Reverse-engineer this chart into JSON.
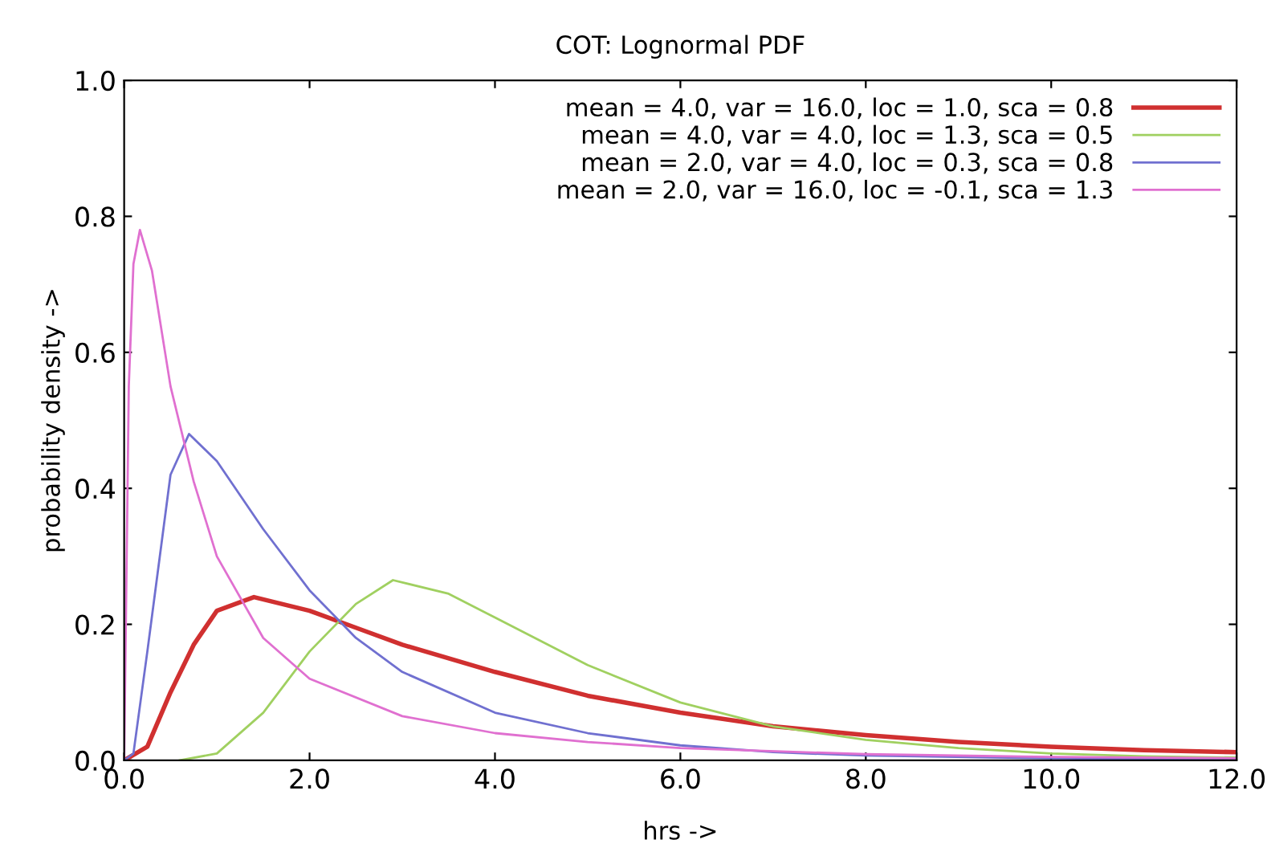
{
  "chart_data": {
    "type": "line",
    "title": "COT: Lognormal PDF",
    "xlabel": "hrs ->",
    "ylabel": "probability density ->",
    "xlim": [
      0,
      12
    ],
    "ylim": [
      0,
      1
    ],
    "xticks": [
      {
        "value": 0,
        "label": "0.0"
      },
      {
        "value": 2,
        "label": "2.0"
      },
      {
        "value": 4,
        "label": "4.0"
      },
      {
        "value": 6,
        "label": "6.0"
      },
      {
        "value": 8,
        "label": "8.0"
      },
      {
        "value": 10,
        "label": "10.0"
      },
      {
        "value": 12,
        "label": "12.0"
      }
    ],
    "yticks": [
      {
        "value": 0,
        "label": "0.0"
      },
      {
        "value": 0.2,
        "label": "0.2"
      },
      {
        "value": 0.4,
        "label": "0.4"
      },
      {
        "value": 0.6,
        "label": "0.6"
      },
      {
        "value": 0.8,
        "label": "0.8"
      },
      {
        "value": 1,
        "label": "1.0"
      }
    ],
    "grid": false,
    "legend": "top right",
    "marker": "none",
    "line_style": "solid",
    "series": [
      {
        "name": "mean = 4.0, var = 16.0, loc = 1.0, sca = 0.8",
        "color": "#d03030",
        "x": [
          0,
          0.25,
          0.5,
          0.75,
          1.0,
          1.4,
          2.0,
          2.5,
          3,
          4,
          5,
          6,
          7,
          8,
          9,
          10,
          11,
          12
        ],
        "values": [
          0,
          0.02,
          0.1,
          0.17,
          0.22,
          0.24,
          0.22,
          0.195,
          0.17,
          0.13,
          0.095,
          0.07,
          0.05,
          0.037,
          0.027,
          0.02,
          0.015,
          0.012
        ]
      },
      {
        "name": "mean = 4.0, var = 4.0, loc = 1.3, sca = 0.5",
        "color": "#a0d060",
        "x": [
          0.6,
          1,
          1.5,
          2,
          2.5,
          2.9,
          3.5,
          4,
          5,
          6,
          7,
          8,
          9,
          10,
          11,
          12
        ],
        "values": [
          0,
          0.01,
          0.07,
          0.16,
          0.23,
          0.265,
          0.245,
          0.21,
          0.14,
          0.085,
          0.05,
          0.03,
          0.018,
          0.01,
          0.006,
          0.004
        ]
      },
      {
        "name": "mean = 2.0, var = 4.0, loc = 0.3, sca = 0.8",
        "color": "#7070d0",
        "x": [
          0,
          0.1,
          0.25,
          0.5,
          0.7,
          1.0,
          1.5,
          2,
          2.5,
          3,
          4,
          5,
          6,
          7,
          8,
          10,
          12
        ],
        "values": [
          0,
          0.01,
          0.16,
          0.42,
          0.48,
          0.44,
          0.34,
          0.25,
          0.18,
          0.13,
          0.07,
          0.04,
          0.022,
          0.012,
          0.007,
          0.003,
          0.001
        ]
      },
      {
        "name": "mean = 2.0, var = 16.0, loc = -0.1, sca = 1.3",
        "color": "#e070d0",
        "x": [
          0,
          0.05,
          0.1,
          0.17,
          0.3,
          0.5,
          0.75,
          1,
          1.5,
          2,
          3,
          4,
          5,
          6,
          8,
          10,
          12
        ],
        "values": [
          0,
          0.55,
          0.73,
          0.78,
          0.72,
          0.55,
          0.41,
          0.3,
          0.18,
          0.12,
          0.065,
          0.04,
          0.027,
          0.018,
          0.009,
          0.005,
          0.003
        ]
      }
    ]
  }
}
